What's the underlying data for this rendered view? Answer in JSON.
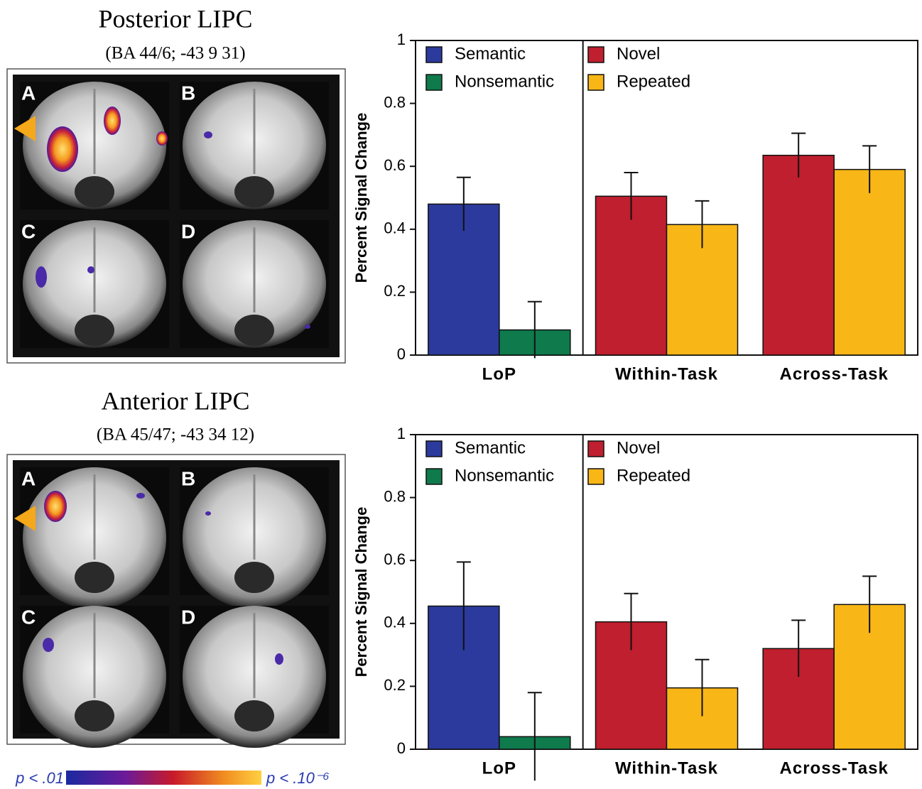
{
  "brain_panels": [
    {
      "title": "Posterior LIPC",
      "subtitle": "(BA 44/6; -43 9 31)",
      "labels": [
        "A",
        "B",
        "C",
        "D"
      ]
    },
    {
      "title": "Anterior LIPC",
      "subtitle": "(BA 45/47; -43 34 12)",
      "labels": [
        "A",
        "B",
        "C",
        "D"
      ]
    }
  ],
  "colorbar": {
    "min_label": "p < .01",
    "max_label": "p < .10⁻⁶"
  },
  "chart_data": [
    {
      "type": "bar",
      "y_label": "Percent Signal Change",
      "categories": [
        "LoP",
        "Within-Task",
        "Across-Task"
      ],
      "series": [
        {
          "name": "Semantic",
          "color": "#2b3a9c",
          "values": [
            0.48,
            null,
            null
          ],
          "errors": [
            0.085,
            null,
            null
          ]
        },
        {
          "name": "Nonsemantic",
          "color": "#0f7a4c",
          "values": [
            0.08,
            null,
            null
          ],
          "errors": [
            0.09,
            null,
            null
          ]
        },
        {
          "name": "Novel",
          "color": "#bf1f2e",
          "values": [
            null,
            0.505,
            0.635
          ],
          "errors": [
            null,
            0.075,
            0.07
          ]
        },
        {
          "name": "Repeated",
          "color": "#f8b617",
          "values": [
            null,
            0.415,
            0.59
          ],
          "errors": [
            null,
            0.075,
            0.075
          ]
        }
      ],
      "ylim": [
        0,
        1
      ],
      "yticks": [
        0,
        0.2,
        0.4,
        0.6,
        0.8,
        1
      ]
    },
    {
      "type": "bar",
      "y_label": "Percent Signal Change",
      "categories": [
        "LoP",
        "Within-Task",
        "Across-Task"
      ],
      "series": [
        {
          "name": "Semantic",
          "color": "#2b3a9c",
          "values": [
            0.455,
            null,
            null
          ],
          "errors": [
            0.14,
            null,
            null
          ]
        },
        {
          "name": "Nonsemantic",
          "color": "#0f7a4c",
          "values": [
            0.04,
            null,
            null
          ],
          "errors": [
            0.14,
            null,
            null
          ]
        },
        {
          "name": "Novel",
          "color": "#bf1f2e",
          "values": [
            null,
            0.405,
            0.32
          ],
          "errors": [
            null,
            0.09,
            0.09
          ]
        },
        {
          "name": "Repeated",
          "color": "#f8b617",
          "values": [
            null,
            0.195,
            0.46
          ],
          "errors": [
            null,
            0.09,
            0.09
          ]
        }
      ],
      "ylim": [
        0,
        1
      ],
      "yticks": [
        0,
        0.2,
        0.4,
        0.6,
        0.8,
        1
      ]
    }
  ]
}
